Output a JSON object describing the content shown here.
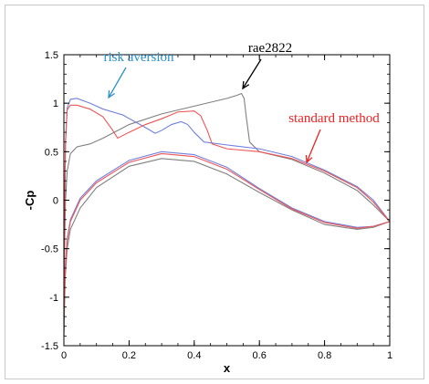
{
  "chart_data": {
    "type": "line",
    "title": "",
    "xlabel": "x",
    "ylabel": "-Cp",
    "xlim": [
      0,
      1
    ],
    "ylim": [
      -1.5,
      1.5
    ],
    "x_ticks": [
      "0",
      "0.2",
      "0.4",
      "0.6",
      "0.8",
      "1"
    ],
    "y_ticks": [
      "1.5",
      "1",
      "0.5",
      "0",
      "-0.5",
      "-1",
      "-1.5"
    ],
    "x_tick_values": [
      0,
      0.2,
      0.4,
      0.6,
      0.8,
      1
    ],
    "y_tick_values": [
      1.5,
      1,
      0.5,
      0,
      -0.5,
      -1,
      -1.5
    ],
    "minor_ticks": true,
    "grid": false,
    "series": [
      {
        "name": "rae2822",
        "color": "#808080",
        "upper": [
          [
            0,
            -1.4
          ],
          [
            0.002,
            -0.5
          ],
          [
            0.005,
            0
          ],
          [
            0.01,
            0.3
          ],
          [
            0.02,
            0.48
          ],
          [
            0.04,
            0.55
          ],
          [
            0.08,
            0.58
          ],
          [
            0.12,
            0.64
          ],
          [
            0.2,
            0.78
          ],
          [
            0.3,
            0.89
          ],
          [
            0.4,
            0.97
          ],
          [
            0.5,
            1.05
          ],
          [
            0.53,
            1.08
          ],
          [
            0.545,
            1.1
          ],
          [
            0.553,
            1.05
          ],
          [
            0.56,
            0.85
          ],
          [
            0.57,
            0.6
          ],
          [
            0.6,
            0.5
          ],
          [
            0.7,
            0.42
          ],
          [
            0.8,
            0.28
          ],
          [
            0.9,
            0.1
          ],
          [
            0.95,
            -0.05
          ],
          [
            1,
            -0.22
          ]
        ],
        "lower": [
          [
            0,
            -1.4
          ],
          [
            0.004,
            -0.8
          ],
          [
            0.01,
            -0.5
          ],
          [
            0.02,
            -0.3
          ],
          [
            0.05,
            -0.08
          ],
          [
            0.1,
            0.13
          ],
          [
            0.2,
            0.35
          ],
          [
            0.3,
            0.43
          ],
          [
            0.4,
            0.4
          ],
          [
            0.5,
            0.27
          ],
          [
            0.6,
            0.08
          ],
          [
            0.7,
            -0.1
          ],
          [
            0.8,
            -0.25
          ],
          [
            0.9,
            -0.3
          ],
          [
            0.95,
            -0.28
          ],
          [
            1,
            -0.22
          ]
        ]
      },
      {
        "name": "risk aversion",
        "color": "#7080e0",
        "upper": [
          [
            0,
            -1.1
          ],
          [
            0.002,
            -0.2
          ],
          [
            0.005,
            0.6
          ],
          [
            0.01,
            0.95
          ],
          [
            0.02,
            1.04
          ],
          [
            0.04,
            1.05
          ],
          [
            0.08,
            1
          ],
          [
            0.12,
            0.94
          ],
          [
            0.18,
            0.88
          ],
          [
            0.25,
            0.75
          ],
          [
            0.28,
            0.69
          ],
          [
            0.3,
            0.72
          ],
          [
            0.33,
            0.78
          ],
          [
            0.36,
            0.81
          ],
          [
            0.38,
            0.78
          ],
          [
            0.4,
            0.7
          ],
          [
            0.43,
            0.6
          ],
          [
            0.5,
            0.57
          ],
          [
            0.6,
            0.53
          ],
          [
            0.7,
            0.45
          ],
          [
            0.8,
            0.31
          ],
          [
            0.9,
            0.14
          ],
          [
            0.95,
            0
          ],
          [
            1,
            -0.22
          ]
        ],
        "lower": [
          [
            0,
            -1.1
          ],
          [
            0.004,
            -0.7
          ],
          [
            0.01,
            -0.4
          ],
          [
            0.02,
            -0.2
          ],
          [
            0.05,
            0.02
          ],
          [
            0.1,
            0.2
          ],
          [
            0.2,
            0.41
          ],
          [
            0.3,
            0.5
          ],
          [
            0.4,
            0.47
          ],
          [
            0.5,
            0.34
          ],
          [
            0.6,
            0.12
          ],
          [
            0.7,
            -0.08
          ],
          [
            0.8,
            -0.22
          ],
          [
            0.9,
            -0.28
          ],
          [
            0.95,
            -0.27
          ],
          [
            1,
            -0.22
          ]
        ]
      },
      {
        "name": "standard method",
        "color": "#ee5555",
        "upper": [
          [
            0,
            -1.2
          ],
          [
            0.002,
            -0.3
          ],
          [
            0.005,
            0.6
          ],
          [
            0.01,
            0.93
          ],
          [
            0.02,
            0.98
          ],
          [
            0.04,
            0.98
          ],
          [
            0.08,
            0.94
          ],
          [
            0.12,
            0.86
          ],
          [
            0.15,
            0.72
          ],
          [
            0.165,
            0.64
          ],
          [
            0.2,
            0.7
          ],
          [
            0.25,
            0.78
          ],
          [
            0.3,
            0.84
          ],
          [
            0.35,
            0.91
          ],
          [
            0.4,
            0.92
          ],
          [
            0.42,
            0.87
          ],
          [
            0.44,
            0.72
          ],
          [
            0.455,
            0.58
          ],
          [
            0.5,
            0.53
          ],
          [
            0.6,
            0.5
          ],
          [
            0.7,
            0.43
          ],
          [
            0.8,
            0.3
          ],
          [
            0.9,
            0.13
          ],
          [
            0.95,
            -0.02
          ],
          [
            1,
            -0.22
          ]
        ],
        "lower": [
          [
            0,
            -1.2
          ],
          [
            0.004,
            -0.75
          ],
          [
            0.01,
            -0.42
          ],
          [
            0.02,
            -0.22
          ],
          [
            0.05,
            0
          ],
          [
            0.1,
            0.18
          ],
          [
            0.2,
            0.39
          ],
          [
            0.3,
            0.48
          ],
          [
            0.4,
            0.45
          ],
          [
            0.5,
            0.32
          ],
          [
            0.6,
            0.11
          ],
          [
            0.7,
            -0.09
          ],
          [
            0.8,
            -0.23
          ],
          [
            0.9,
            -0.29
          ],
          [
            0.95,
            -0.27
          ],
          [
            1,
            -0.22
          ]
        ]
      }
    ],
    "annotations": [
      {
        "text": "risk aversion",
        "color": "#2a8fc8",
        "target": [
          0.12,
          0.97
        ]
      },
      {
        "text": "rae2822",
        "color": "#000000",
        "target": [
          0.53,
          1.1
        ]
      },
      {
        "text": "standard method",
        "color": "#ee2222",
        "target": [
          0.75,
          0.35
        ]
      }
    ]
  }
}
